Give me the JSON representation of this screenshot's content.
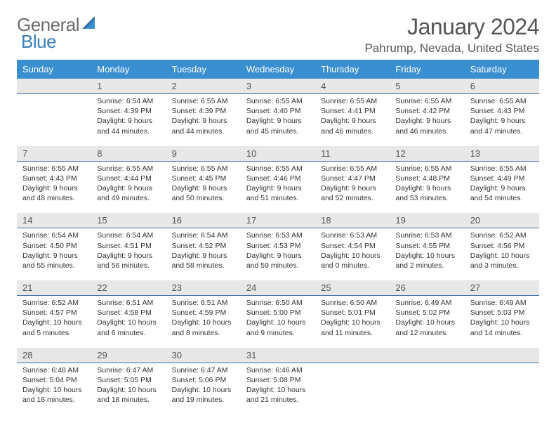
{
  "logo": {
    "text1": "General",
    "text2": "Blue"
  },
  "title": "January 2024",
  "location": "Pahrump, Nevada, United States",
  "colors": {
    "header_bg": "#3a8fd0",
    "header_text": "#ffffff",
    "daynum_bg": "#e8e8e8",
    "daynum_border": "#3a6fa0",
    "body_text": "#333333",
    "logo_gray": "#6b6b6b",
    "logo_blue": "#3a7fb8"
  },
  "weekdays": [
    "Sunday",
    "Monday",
    "Tuesday",
    "Wednesday",
    "Thursday",
    "Friday",
    "Saturday"
  ],
  "weeks": [
    [
      null,
      {
        "n": "1",
        "sr": "Sunrise: 6:54 AM",
        "ss": "Sunset: 4:39 PM",
        "dl1": "Daylight: 9 hours",
        "dl2": "and 44 minutes."
      },
      {
        "n": "2",
        "sr": "Sunrise: 6:55 AM",
        "ss": "Sunset: 4:39 PM",
        "dl1": "Daylight: 9 hours",
        "dl2": "and 44 minutes."
      },
      {
        "n": "3",
        "sr": "Sunrise: 6:55 AM",
        "ss": "Sunset: 4:40 PM",
        "dl1": "Daylight: 9 hours",
        "dl2": "and 45 minutes."
      },
      {
        "n": "4",
        "sr": "Sunrise: 6:55 AM",
        "ss": "Sunset: 4:41 PM",
        "dl1": "Daylight: 9 hours",
        "dl2": "and 46 minutes."
      },
      {
        "n": "5",
        "sr": "Sunrise: 6:55 AM",
        "ss": "Sunset: 4:42 PM",
        "dl1": "Daylight: 9 hours",
        "dl2": "and 46 minutes."
      },
      {
        "n": "6",
        "sr": "Sunrise: 6:55 AM",
        "ss": "Sunset: 4:43 PM",
        "dl1": "Daylight: 9 hours",
        "dl2": "and 47 minutes."
      }
    ],
    [
      {
        "n": "7",
        "sr": "Sunrise: 6:55 AM",
        "ss": "Sunset: 4:43 PM",
        "dl1": "Daylight: 9 hours",
        "dl2": "and 48 minutes."
      },
      {
        "n": "8",
        "sr": "Sunrise: 6:55 AM",
        "ss": "Sunset: 4:44 PM",
        "dl1": "Daylight: 9 hours",
        "dl2": "and 49 minutes."
      },
      {
        "n": "9",
        "sr": "Sunrise: 6:55 AM",
        "ss": "Sunset: 4:45 PM",
        "dl1": "Daylight: 9 hours",
        "dl2": "and 50 minutes."
      },
      {
        "n": "10",
        "sr": "Sunrise: 6:55 AM",
        "ss": "Sunset: 4:46 PM",
        "dl1": "Daylight: 9 hours",
        "dl2": "and 51 minutes."
      },
      {
        "n": "11",
        "sr": "Sunrise: 6:55 AM",
        "ss": "Sunset: 4:47 PM",
        "dl1": "Daylight: 9 hours",
        "dl2": "and 52 minutes."
      },
      {
        "n": "12",
        "sr": "Sunrise: 6:55 AM",
        "ss": "Sunset: 4:48 PM",
        "dl1": "Daylight: 9 hours",
        "dl2": "and 53 minutes."
      },
      {
        "n": "13",
        "sr": "Sunrise: 6:55 AM",
        "ss": "Sunset: 4:49 PM",
        "dl1": "Daylight: 9 hours",
        "dl2": "and 54 minutes."
      }
    ],
    [
      {
        "n": "14",
        "sr": "Sunrise: 6:54 AM",
        "ss": "Sunset: 4:50 PM",
        "dl1": "Daylight: 9 hours",
        "dl2": "and 55 minutes."
      },
      {
        "n": "15",
        "sr": "Sunrise: 6:54 AM",
        "ss": "Sunset: 4:51 PM",
        "dl1": "Daylight: 9 hours",
        "dl2": "and 56 minutes."
      },
      {
        "n": "16",
        "sr": "Sunrise: 6:54 AM",
        "ss": "Sunset: 4:52 PM",
        "dl1": "Daylight: 9 hours",
        "dl2": "and 58 minutes."
      },
      {
        "n": "17",
        "sr": "Sunrise: 6:53 AM",
        "ss": "Sunset: 4:53 PM",
        "dl1": "Daylight: 9 hours",
        "dl2": "and 59 minutes."
      },
      {
        "n": "18",
        "sr": "Sunrise: 6:53 AM",
        "ss": "Sunset: 4:54 PM",
        "dl1": "Daylight: 10 hours",
        "dl2": "and 0 minutes."
      },
      {
        "n": "19",
        "sr": "Sunrise: 6:53 AM",
        "ss": "Sunset: 4:55 PM",
        "dl1": "Daylight: 10 hours",
        "dl2": "and 2 minutes."
      },
      {
        "n": "20",
        "sr": "Sunrise: 6:52 AM",
        "ss": "Sunset: 4:56 PM",
        "dl1": "Daylight: 10 hours",
        "dl2": "and 3 minutes."
      }
    ],
    [
      {
        "n": "21",
        "sr": "Sunrise: 6:52 AM",
        "ss": "Sunset: 4:57 PM",
        "dl1": "Daylight: 10 hours",
        "dl2": "and 5 minutes."
      },
      {
        "n": "22",
        "sr": "Sunrise: 6:51 AM",
        "ss": "Sunset: 4:58 PM",
        "dl1": "Daylight: 10 hours",
        "dl2": "and 6 minutes."
      },
      {
        "n": "23",
        "sr": "Sunrise: 6:51 AM",
        "ss": "Sunset: 4:59 PM",
        "dl1": "Daylight: 10 hours",
        "dl2": "and 8 minutes."
      },
      {
        "n": "24",
        "sr": "Sunrise: 6:50 AM",
        "ss": "Sunset: 5:00 PM",
        "dl1": "Daylight: 10 hours",
        "dl2": "and 9 minutes."
      },
      {
        "n": "25",
        "sr": "Sunrise: 6:50 AM",
        "ss": "Sunset: 5:01 PM",
        "dl1": "Daylight: 10 hours",
        "dl2": "and 11 minutes."
      },
      {
        "n": "26",
        "sr": "Sunrise: 6:49 AM",
        "ss": "Sunset: 5:02 PM",
        "dl1": "Daylight: 10 hours",
        "dl2": "and 12 minutes."
      },
      {
        "n": "27",
        "sr": "Sunrise: 6:49 AM",
        "ss": "Sunset: 5:03 PM",
        "dl1": "Daylight: 10 hours",
        "dl2": "and 14 minutes."
      }
    ],
    [
      {
        "n": "28",
        "sr": "Sunrise: 6:48 AM",
        "ss": "Sunset: 5:04 PM",
        "dl1": "Daylight: 10 hours",
        "dl2": "and 16 minutes."
      },
      {
        "n": "29",
        "sr": "Sunrise: 6:47 AM",
        "ss": "Sunset: 5:05 PM",
        "dl1": "Daylight: 10 hours",
        "dl2": "and 18 minutes."
      },
      {
        "n": "30",
        "sr": "Sunrise: 6:47 AM",
        "ss": "Sunset: 5:06 PM",
        "dl1": "Daylight: 10 hours",
        "dl2": "and 19 minutes."
      },
      {
        "n": "31",
        "sr": "Sunrise: 6:46 AM",
        "ss": "Sunset: 5:08 PM",
        "dl1": "Daylight: 10 hours",
        "dl2": "and 21 minutes."
      },
      null,
      null,
      null
    ]
  ]
}
